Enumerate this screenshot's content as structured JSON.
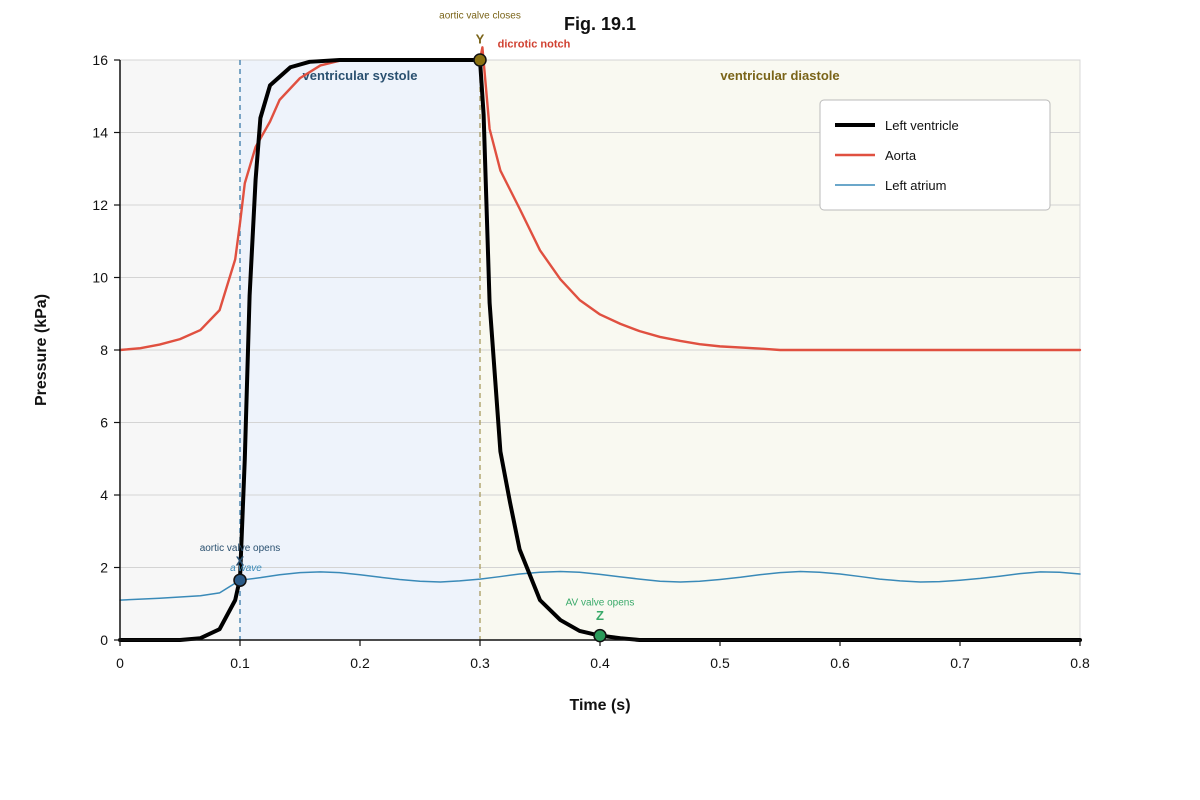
{
  "chart_data": {
    "type": "line",
    "title": "Fig. 19.1",
    "xlabel": "Time (s)",
    "ylabel": "Pressure (kPa)",
    "xlim": [
      0,
      0.8
    ],
    "ylim": [
      0,
      16
    ],
    "xticks": [
      0,
      0.1,
      0.2,
      0.3,
      0.4,
      0.5,
      0.6,
      0.7,
      0.8
    ],
    "xtick_labels": [
      "0",
      "0.1",
      "0.2",
      "0.3",
      "0.4",
      "0.5",
      "0.6",
      "0.7",
      "0.8"
    ],
    "yticks": [
      0,
      2,
      4,
      6,
      8,
      10,
      12,
      14,
      16
    ],
    "ytick_labels": [
      "0",
      "2",
      "4",
      "6",
      "8",
      "10",
      "12",
      "14",
      "16"
    ],
    "grid": "horizontal",
    "legend_position": "top-right",
    "regions": [
      {
        "label": "ventricular systole",
        "x_start": 0.1,
        "x_end": 0.3,
        "color": "#eef3fb",
        "label_color": "#2a5070"
      },
      {
        "label": "ventricular diastole",
        "x_start": 0.3,
        "x_end": 0.8,
        "color": "#f9f9f1",
        "label_color": "#7a6418"
      }
    ],
    "pre_region_color": "#f7f7f7",
    "series": [
      {
        "name": "Left ventricle",
        "color": "#000000",
        "x": [
          0,
          0.05,
          0.067,
          0.083,
          0.096,
          0.1,
          0.104,
          0.108,
          0.113,
          0.117,
          0.125,
          0.142,
          0.158,
          0.183,
          0.2,
          0.25,
          0.3,
          0.303,
          0.308,
          0.317,
          0.325,
          0.333,
          0.35,
          0.367,
          0.383,
          0.4,
          0.417,
          0.433,
          0.5,
          0.6,
          0.7,
          0.8
        ],
        "y": [
          0,
          0,
          0.05,
          0.3,
          1.1,
          1.7,
          5,
          9.5,
          12.7,
          14.4,
          15.3,
          15.8,
          15.95,
          16,
          16,
          16,
          16,
          14.5,
          9.3,
          5.2,
          3.8,
          2.5,
          1.1,
          0.55,
          0.25,
          0.12,
          0.05,
          0,
          0,
          0,
          0,
          0
        ]
      },
      {
        "name": "Aorta",
        "color": "#e05040",
        "x": [
          0,
          0.017,
          0.033,
          0.05,
          0.067,
          0.083,
          0.096,
          0.1,
          0.104,
          0.113,
          0.125,
          0.133,
          0.15,
          0.167,
          0.183,
          0.2,
          0.25,
          0.3,
          0.302,
          0.304,
          0.308,
          0.317,
          0.333,
          0.35,
          0.367,
          0.383,
          0.4,
          0.417,
          0.433,
          0.45,
          0.467,
          0.483,
          0.5,
          0.533,
          0.55,
          0.6,
          0.7,
          0.8
        ],
        "y": [
          8,
          8.05,
          8.15,
          8.3,
          8.55,
          9.1,
          10.5,
          11.5,
          12.6,
          13.6,
          14.3,
          14.9,
          15.5,
          15.85,
          15.98,
          16,
          16,
          16,
          16.35,
          15.6,
          14.1,
          12.95,
          11.9,
          10.75,
          9.95,
          9.38,
          8.98,
          8.72,
          8.52,
          8.36,
          8.25,
          8.16,
          8.1,
          8.04,
          8,
          8,
          8,
          8
        ]
      },
      {
        "name": "Left atrium",
        "color": "#3a8ab8",
        "x": [
          0,
          0.033,
          0.067,
          0.083,
          0.1,
          0.117,
          0.133,
          0.15,
          0.167,
          0.183,
          0.2,
          0.217,
          0.233,
          0.25,
          0.267,
          0.283,
          0.3,
          0.317,
          0.333,
          0.35,
          0.367,
          0.383,
          0.4,
          0.417,
          0.433,
          0.45,
          0.467,
          0.483,
          0.5,
          0.517,
          0.533,
          0.55,
          0.567,
          0.583,
          0.6,
          0.617,
          0.633,
          0.65,
          0.667,
          0.683,
          0.7,
          0.717,
          0.733,
          0.75,
          0.767,
          0.783,
          0.8
        ],
        "y": [
          1.1,
          1.15,
          1.22,
          1.3,
          1.65,
          1.72,
          1.8,
          1.86,
          1.88,
          1.86,
          1.8,
          1.73,
          1.67,
          1.62,
          1.6,
          1.63,
          1.68,
          1.75,
          1.82,
          1.87,
          1.89,
          1.87,
          1.81,
          1.74,
          1.68,
          1.62,
          1.6,
          1.62,
          1.67,
          1.73,
          1.8,
          1.86,
          1.89,
          1.87,
          1.82,
          1.75,
          1.68,
          1.63,
          1.6,
          1.61,
          1.65,
          1.7,
          1.76,
          1.83,
          1.88,
          1.87,
          1.82
        ]
      }
    ],
    "vlines": [
      {
        "x": 0.1,
        "color": "#3a7aaa"
      },
      {
        "x": 0.3,
        "color": "#a89a60"
      }
    ],
    "markers": [
      {
        "x": 0.1,
        "y": 1.65,
        "color": "#2a5a88"
      },
      {
        "x": 0.3,
        "y": 16,
        "color": "#8a7010"
      },
      {
        "x": 0.4,
        "y": 0.12,
        "color": "#2a9a5a"
      }
    ],
    "annotations": [
      {
        "text": "aortic valve opens",
        "x": 0.1,
        "y": 2.45,
        "color": "#2a5070",
        "style": "small"
      },
      {
        "text": "X",
        "x": 0.1,
        "y": 2.05,
        "color": "#2a5070",
        "style": "letter"
      },
      {
        "text": "a wave",
        "x": 0.105,
        "y": 1.9,
        "color": "#3a8ab8",
        "style": "italic"
      },
      {
        "text": "aortic valve closes",
        "x": 0.3,
        "y": 17.15,
        "color": "#7a6418",
        "style": "small"
      },
      {
        "text": "Y",
        "x": 0.3,
        "y": 16.45,
        "color": "#7a6418",
        "style": "letter"
      },
      {
        "text": "dicrotic notch",
        "x": 0.345,
        "y": 16.35,
        "color": "#d04030",
        "style": "bold"
      },
      {
        "text": "AV valve opens",
        "x": 0.4,
        "y": 0.95,
        "color": "#3aaa6a",
        "style": "small"
      },
      {
        "text": "Z",
        "x": 0.4,
        "y": 0.55,
        "color": "#3aaa6a",
        "style": "letter"
      }
    ]
  }
}
